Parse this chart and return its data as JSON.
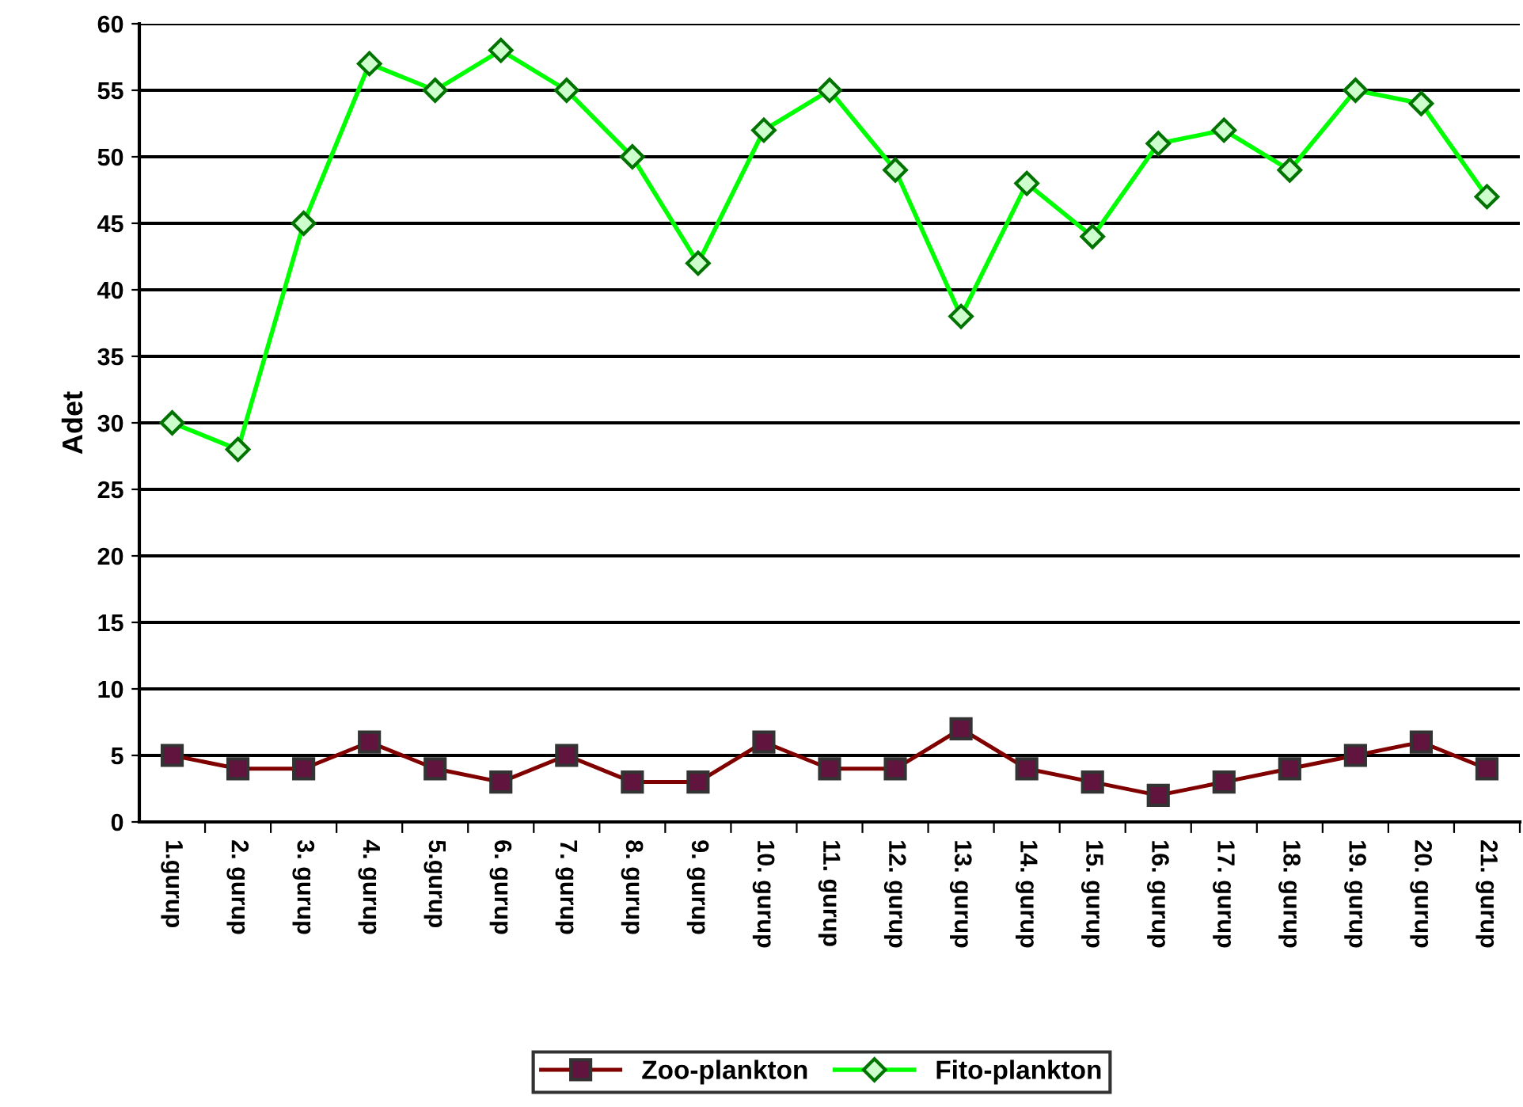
{
  "chart_data": {
    "type": "line",
    "ylabel": "Adet",
    "categories": [
      "1.gurup",
      "2. gurup",
      "3. gurup",
      "4. gurup",
      "5.gurup",
      "6. gurup",
      "7. gurup",
      "8. gurup",
      "9. gurup",
      "10. gurup",
      "11. gurup",
      "12. gurup",
      "13. gurup",
      "14. gurup",
      "15. gurup",
      "16. gurup",
      "17. gurup",
      "18. gurup",
      "19. gurup",
      "20. gurup",
      "21. gurup"
    ],
    "series": [
      {
        "name": "Zoo-plankton",
        "color": "#800000",
        "marker": "square",
        "values": [
          5,
          4,
          4,
          6,
          4,
          3,
          5,
          3,
          3,
          6,
          4,
          4,
          7,
          4,
          3,
          2,
          3,
          4,
          5,
          6,
          4
        ]
      },
      {
        "name": "Fito-plankton",
        "color": "#00ff00",
        "marker": "diamond",
        "values": [
          30,
          28,
          45,
          57,
          55,
          58,
          55,
          50,
          42,
          52,
          55,
          49,
          38,
          48,
          44,
          51,
          52,
          49,
          55,
          54,
          47
        ]
      }
    ],
    "ylim": [
      0,
      60
    ],
    "yticks": [
      0,
      5,
      10,
      15,
      20,
      25,
      30,
      35,
      40,
      45,
      50,
      55,
      60
    ],
    "grid": "y",
    "legend": "bottom",
    "line_style": "solid"
  }
}
